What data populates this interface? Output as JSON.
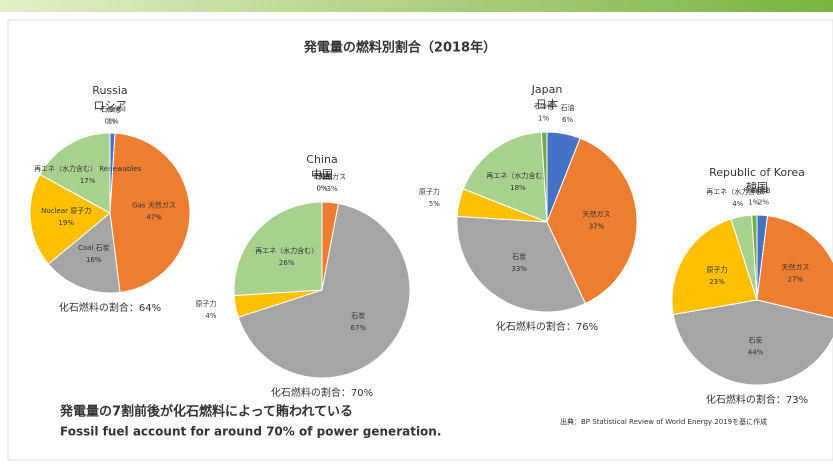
{
  "title": "発電量の燃料別割合（2018年）",
  "headline": "発電量の7割前後が化石燃料によって賄われている",
  "headline_en": "Fossil fuel account for around 70% of power generation.",
  "source": "出典：BP Statistical Review of World Energy 2019を基に作成",
  "chart_data": [
    {
      "type": "pie",
      "title": "Russia",
      "subtitle": "ロシア",
      "annotation": "化石燃料の割合：64%",
      "categories": [
        "石油 Oil",
        "Gas 天然ガス",
        "Coal 石炭",
        "Nuclear 原子力",
        "再エネ（水力含む） Renewables",
        "その他"
      ],
      "values": [
        1,
        47,
        16,
        19,
        17,
        0
      ],
      "value_labels": [
        "1%",
        "47%",
        "16%",
        "19%",
        "17%",
        "0%"
      ],
      "colors": [
        "#4472c4",
        "#ed7d31",
        "#a5a5a5",
        "#ffc000",
        "#a9d18e",
        "#70ad47"
      ]
    },
    {
      "type": "pie",
      "title": "China",
      "subtitle": "中国",
      "annotation": "化石燃料の割合：70%",
      "categories": [
        "石油",
        "天然ガス",
        "石炭",
        "原子力",
        "再エネ（水力含む）",
        "その他"
      ],
      "values": [
        0,
        3,
        67,
        4,
        26,
        0
      ],
      "value_labels": [
        "0%",
        "3%",
        "67%",
        "4%",
        "26%",
        "0%"
      ],
      "colors": [
        "#4472c4",
        "#ed7d31",
        "#a5a5a5",
        "#ffc000",
        "#a9d18e",
        "#70ad47"
      ]
    },
    {
      "type": "pie",
      "title": "Japan",
      "subtitle": "日本",
      "annotation": "化石燃料の割合：76%",
      "categories": [
        "石油",
        "天然ガス",
        "石炭",
        "原子力",
        "再エネ（水力含む）",
        "その他"
      ],
      "values": [
        6,
        37,
        33,
        5,
        18,
        1
      ],
      "value_labels": [
        "6%",
        "37%",
        "33%",
        "5%",
        "18%",
        "1%"
      ],
      "colors": [
        "#4472c4",
        "#ed7d31",
        "#a5a5a5",
        "#ffc000",
        "#a9d18e",
        "#70ad47"
      ]
    },
    {
      "type": "pie",
      "title": "Republic of Korea",
      "subtitle": "韓国",
      "annotation": "化石燃料の割合：73%",
      "categories": [
        "石油",
        "天然ガス",
        "石炭",
        "原子力",
        "再エネ（水力含む）",
        "その他"
      ],
      "values": [
        2,
        27,
        44,
        23,
        4,
        1
      ],
      "value_labels": [
        "2%",
        "27%",
        "44%",
        "23%",
        "4%",
        "1%"
      ],
      "colors": [
        "#4472c4",
        "#ed7d31",
        "#a5a5a5",
        "#ffc000",
        "#a9d18e",
        "#70ad47"
      ]
    }
  ]
}
